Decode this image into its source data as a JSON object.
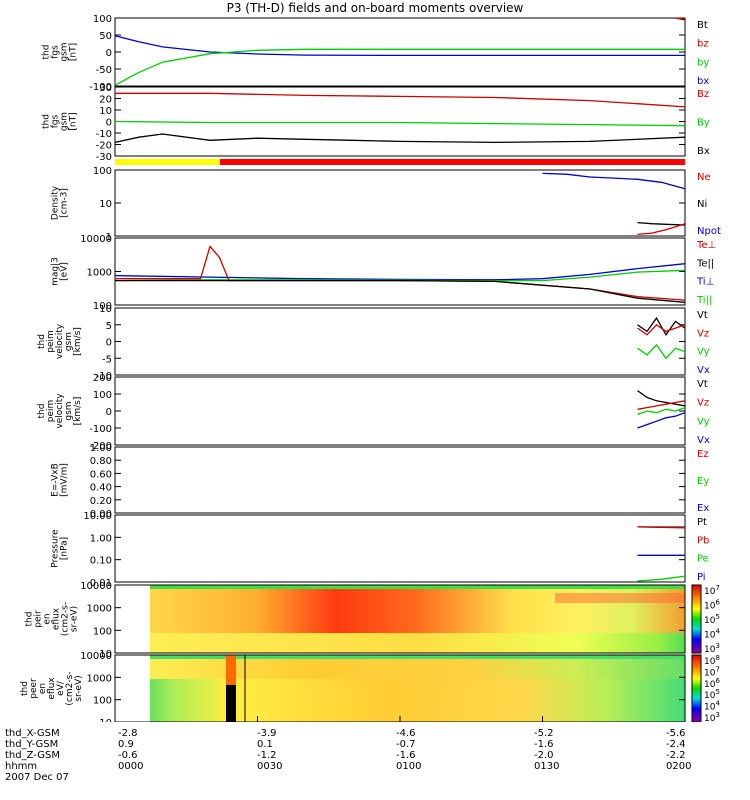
{
  "title": "P3 (TH-D) fields and on-board moments overview",
  "chart_data": [
    {
      "type": "line",
      "ylabel": [
        "thd",
        "fgs",
        "gsm",
        "[nT]"
      ],
      "yticks": [
        "100",
        "50",
        "0",
        "-50",
        "-100"
      ],
      "ylim": [
        -100,
        100
      ],
      "legend": [
        {
          "label": "Bt",
          "color": "#000000"
        },
        {
          "label": "bz",
          "color": "#cc0000"
        },
        {
          "label": "by",
          "color": "#00cc00"
        },
        {
          "label": "bx",
          "color": "#0000cc"
        }
      ],
      "series": [
        {
          "name": "bx",
          "color": "#0000cc",
          "x": [
            0,
            5,
            10,
            20,
            30,
            40,
            60,
            80,
            100,
            120
          ],
          "y": [
            48,
            30,
            15,
            0,
            -6,
            -9,
            -10,
            -10,
            -10,
            -10
          ]
        },
        {
          "name": "by",
          "color": "#00cc00",
          "x": [
            0,
            5,
            10,
            20,
            30,
            40,
            60,
            80,
            100,
            120
          ],
          "y": [
            -98,
            -60,
            -30,
            -5,
            5,
            8,
            8,
            8,
            8,
            8
          ]
        },
        {
          "name": "Bt",
          "color": "#000000",
          "x": [
            118,
            120
          ],
          "y": [
            100,
            95
          ]
        },
        {
          "name": "bz",
          "color": "#cc0000",
          "x": [
            118,
            120
          ],
          "y": [
            100,
            98
          ]
        }
      ]
    },
    {
      "type": "line",
      "ylabel": [
        "thd",
        "fgs",
        "gsm",
        "[nT]"
      ],
      "yticks": [
        "30",
        "20",
        "10",
        "0",
        "-10",
        "-20",
        "-30"
      ],
      "ylim": [
        -33,
        33
      ],
      "legend": [
        {
          "label": "Bz",
          "color": "#cc0000"
        },
        {
          "label": "By",
          "color": "#00cc00"
        },
        {
          "label": "Bx",
          "color": "#000000"
        }
      ],
      "series": [
        {
          "name": "Bz",
          "color": "#cc0000",
          "x": [
            0,
            20,
            40,
            60,
            80,
            100,
            110,
            120
          ],
          "y": [
            27,
            27,
            25,
            24,
            23,
            20,
            17,
            14
          ]
        },
        {
          "name": "By",
          "color": "#00cc00",
          "x": [
            0,
            20,
            40,
            60,
            80,
            100,
            120
          ],
          "y": [
            0,
            -1,
            -1,
            -1,
            -2,
            -3,
            -4
          ]
        },
        {
          "name": "Bx",
          "color": "#000000",
          "x": [
            0,
            5,
            10,
            20,
            30,
            40,
            50,
            60,
            80,
            100,
            120
          ],
          "y": [
            -20,
            -15,
            -12,
            -18,
            -16,
            -17,
            -18,
            -19,
            -20,
            -19,
            -15
          ]
        }
      ]
    },
    {
      "type": "line",
      "ylabel": [
        "Density",
        "[cm-3]"
      ],
      "yticks": [
        "100",
        "10",
        "1"
      ],
      "ylim": [
        0.7,
        200
      ],
      "yscale": "log",
      "legend": [
        {
          "label": "Ne",
          "color": "#cc0000"
        },
        {
          "label": "Ni",
          "color": "#000000"
        },
        {
          "label": "Npot",
          "color": "#0000cc"
        }
      ],
      "series": [
        {
          "name": "Npot",
          "color": "#0000cc",
          "x": [
            90,
            95,
            100,
            105,
            110,
            115,
            120
          ],
          "y": [
            150,
            140,
            110,
            100,
            90,
            70,
            40
          ]
        },
        {
          "name": "Ni",
          "color": "#000000",
          "x": [
            110,
            113,
            116,
            120
          ],
          "y": [
            2.2,
            2.0,
            1.9,
            1.8
          ]
        },
        {
          "name": "Ne",
          "color": "#cc0000",
          "x": [
            110,
            113,
            116,
            120
          ],
          "y": [
            0.8,
            0.9,
            1.2,
            2.0
          ]
        }
      ]
    },
    {
      "type": "line",
      "ylabel": [
        "mag|3",
        "[eV]"
      ],
      "yticks": [
        "10000",
        "1000",
        "100"
      ],
      "ylim": [
        40,
        10000
      ],
      "yscale": "log",
      "legend": [
        {
          "label": "Te⊥",
          "color": "#cc0000"
        },
        {
          "label": "Te||",
          "color": "#000000"
        },
        {
          "label": "Ti⊥",
          "color": "#0000cc"
        },
        {
          "label": "Ti||",
          "color": "#00cc00"
        }
      ],
      "series": [
        {
          "name": "Ti⊥",
          "color": "#0000cc",
          "x": [
            0,
            20,
            40,
            60,
            80,
            90,
            100,
            110,
            120
          ],
          "y": [
            450,
            400,
            350,
            330,
            320,
            350,
            500,
            800,
            1200
          ]
        },
        {
          "name": "Ti||",
          "color": "#00cc00",
          "x": [
            0,
            20,
            40,
            60,
            80,
            90,
            100,
            110,
            120
          ],
          "y": [
            300,
            320,
            320,
            310,
            300,
            300,
            400,
            600,
            700
          ]
        },
        {
          "name": "Te⊥",
          "color": "#cc0000",
          "x": [
            0,
            18,
            20,
            22,
            24,
            40,
            60,
            80,
            100,
            110,
            120
          ],
          "y": [
            350,
            350,
            5000,
            2000,
            300,
            300,
            300,
            280,
            150,
            80,
            60
          ]
        },
        {
          "name": "Te||",
          "color": "#000000",
          "x": [
            0,
            20,
            40,
            60,
            80,
            100,
            110,
            120
          ],
          "y": [
            300,
            300,
            300,
            300,
            280,
            150,
            70,
            50
          ]
        }
      ]
    },
    {
      "type": "line",
      "ylabel": [
        "thd",
        "peim",
        "velocity",
        "gsm",
        "[km/s]"
      ],
      "yticks": [
        "10",
        "5",
        "0",
        "-5",
        "-10"
      ],
      "ylim": [
        -10,
        10
      ],
      "legend": [
        {
          "label": "Vt",
          "color": "#000000"
        },
        {
          "label": "Vz",
          "color": "#cc0000"
        },
        {
          "label": "Vy",
          "color": "#00cc00"
        },
        {
          "label": "Vx",
          "color": "#0000cc"
        }
      ],
      "series": [
        {
          "name": "Vt",
          "color": "#000000",
          "x": [
            110,
            112,
            114,
            116,
            118,
            120
          ],
          "y": [
            5,
            3,
            7,
            2,
            6,
            4
          ]
        },
        {
          "name": "Vz",
          "color": "#cc0000",
          "x": [
            110,
            112,
            114,
            116,
            118,
            120
          ],
          "y": [
            4,
            2,
            5,
            3,
            4,
            5
          ]
        },
        {
          "name": "Vy",
          "color": "#00cc00",
          "x": [
            110,
            112,
            114,
            116,
            118,
            120
          ],
          "y": [
            -2,
            -4,
            -1,
            -5,
            -2,
            -3
          ]
        }
      ]
    },
    {
      "type": "line",
      "ylabel": [
        "thd",
        "peim",
        "velocity",
        "gsm",
        "[km/s]"
      ],
      "yticks": [
        "200",
        "100",
        "0",
        "-100",
        "-200"
      ],
      "ylim": [
        -200,
        200
      ],
      "legend": [
        {
          "label": "Vt",
          "color": "#000000"
        },
        {
          "label": "Vz",
          "color": "#cc0000"
        },
        {
          "label": "Vy",
          "color": "#00cc00"
        },
        {
          "label": "Vx",
          "color": "#0000cc"
        }
      ],
      "series": [
        {
          "name": "Vt",
          "color": "#000000",
          "x": [
            110,
            112,
            114,
            116,
            118,
            120
          ],
          "y": [
            120,
            80,
            60,
            50,
            40,
            30
          ]
        },
        {
          "name": "Vz",
          "color": "#cc0000",
          "x": [
            110,
            112,
            114,
            116,
            118,
            120
          ],
          "y": [
            10,
            20,
            30,
            40,
            50,
            60
          ]
        },
        {
          "name": "Vy",
          "color": "#00cc00",
          "x": [
            110,
            112,
            114,
            116,
            118,
            120
          ],
          "y": [
            -20,
            0,
            -10,
            10,
            0,
            20
          ]
        },
        {
          "name": "Vx",
          "color": "#0000cc",
          "x": [
            110,
            112,
            114,
            116,
            118,
            120
          ],
          "y": [
            -100,
            -80,
            -60,
            -40,
            -30,
            -10
          ]
        }
      ]
    },
    {
      "type": "line",
      "ylabel": [
        "E=-VxB",
        "[mV/m]"
      ],
      "yticks": [
        "1.00",
        "0.80",
        "0.60",
        "0.40",
        "0.20",
        "0.00"
      ],
      "ylim": [
        0,
        1
      ],
      "legend": [
        {
          "label": "Ez",
          "color": "#cc0000"
        },
        {
          "label": "Ey",
          "color": "#00cc00"
        },
        {
          "label": "Ex",
          "color": "#0000cc"
        }
      ],
      "series": []
    },
    {
      "type": "line",
      "ylabel": [
        "Pressure",
        "[nPa]"
      ],
      "yticks": [
        "10.00",
        "1.00",
        "0.10",
        "0.01"
      ],
      "ylim": [
        0.008,
        20
      ],
      "yscale": "log",
      "legend": [
        {
          "label": "Pt",
          "color": "#000000"
        },
        {
          "label": "Pb",
          "color": "#cc0000"
        },
        {
          "label": "Pe",
          "color": "#00cc00"
        },
        {
          "label": "Pi",
          "color": "#0000cc"
        }
      ],
      "series": [
        {
          "name": "Pt",
          "color": "#000000",
          "x": [
            110,
            120
          ],
          "y": [
            5,
            4.8
          ]
        },
        {
          "name": "Pb",
          "color": "#cc0000",
          "x": [
            110,
            120
          ],
          "y": [
            5,
            4.5
          ]
        },
        {
          "name": "Pi",
          "color": "#0000cc",
          "x": [
            110,
            120
          ],
          "y": [
            0.18,
            0.18
          ]
        },
        {
          "name": "Pe",
          "color": "#00cc00",
          "x": [
            110,
            115,
            120
          ],
          "y": [
            0.009,
            0.011,
            0.016
          ]
        }
      ]
    },
    {
      "type": "heatmap",
      "ylabel": [
        "thd",
        "peir",
        "en",
        "eflux",
        "(cm2-s-",
        "sr-eV)"
      ],
      "yticks": [
        "10000",
        "1000",
        "100",
        "10"
      ],
      "yscale": "log",
      "colorbar": [
        "10^7",
        "10^6",
        "10^5",
        "10^4",
        "10^3"
      ]
    },
    {
      "type": "heatmap",
      "ylabel": [
        "thd",
        "peer",
        "en",
        "eflux",
        "eV/",
        "(cm2-s-",
        "sr-eV)"
      ],
      "yticks": [
        "10000",
        "1000",
        "100",
        "10"
      ],
      "yscale": "log",
      "colorbar": [
        "10^8",
        "10^7",
        "10^6",
        "10^5",
        "10^4",
        "10^3"
      ]
    }
  ],
  "mode_bar": {
    "colors": [
      "#ffff00",
      "#ff0000"
    ]
  },
  "footer": {
    "rows": [
      {
        "label": "thd_X-GSM",
        "values": [
          "-2.8",
          "-3.9",
          "-4.6",
          "-5.2",
          "-5.6"
        ]
      },
      {
        "label": "thd_Y-GSM",
        "values": [
          "0.9",
          "0.1",
          "-0.7",
          "-1.6",
          "-2.4"
        ]
      },
      {
        "label": "thd_Z-GSM",
        "values": [
          "-0.6",
          "-1.2",
          "-1.6",
          "-2.0",
          "-2.2"
        ]
      },
      {
        "label": "hhmm",
        "values": [
          "0000",
          "0030",
          "0100",
          "0130",
          "0200"
        ]
      }
    ],
    "date": "2007 Dec 07"
  }
}
